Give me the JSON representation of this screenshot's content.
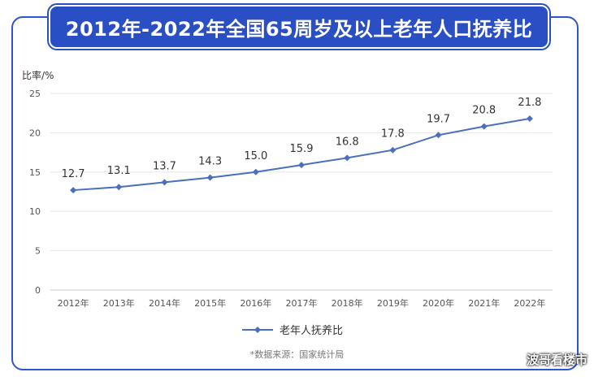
{
  "chart_data": {
    "type": "line",
    "title": "2012年-2022年全国65周岁及以上老年人口抚养比",
    "ylabel": "比率/%",
    "xlabel": "",
    "categories": [
      "2012年",
      "2013年",
      "2014年",
      "2015年",
      "2016年",
      "2017年",
      "2018年",
      "2019年",
      "2020年",
      "2021年",
      "2022年"
    ],
    "series": [
      {
        "name": "老年人抚养比",
        "values": [
          12.7,
          13.1,
          13.7,
          14.3,
          15.0,
          15.9,
          16.8,
          17.8,
          19.7,
          20.8,
          21.8
        ]
      }
    ],
    "data_labels": [
      "12.7",
      "13.1",
      "13.7",
      "14.3",
      "15.0",
      "15.9",
      "16.8",
      "17.8",
      "19.7",
      "20.8",
      "21.8"
    ],
    "ylim": [
      0,
      25
    ],
    "yticks": [
      "0",
      "5",
      "10",
      "15",
      "20",
      "25"
    ],
    "grid": true,
    "legend_position": "bottom",
    "line_color": "#4a6fbf"
  },
  "source_note": "*数据来源：国家统计局",
  "watermark": "波哥看楼市"
}
